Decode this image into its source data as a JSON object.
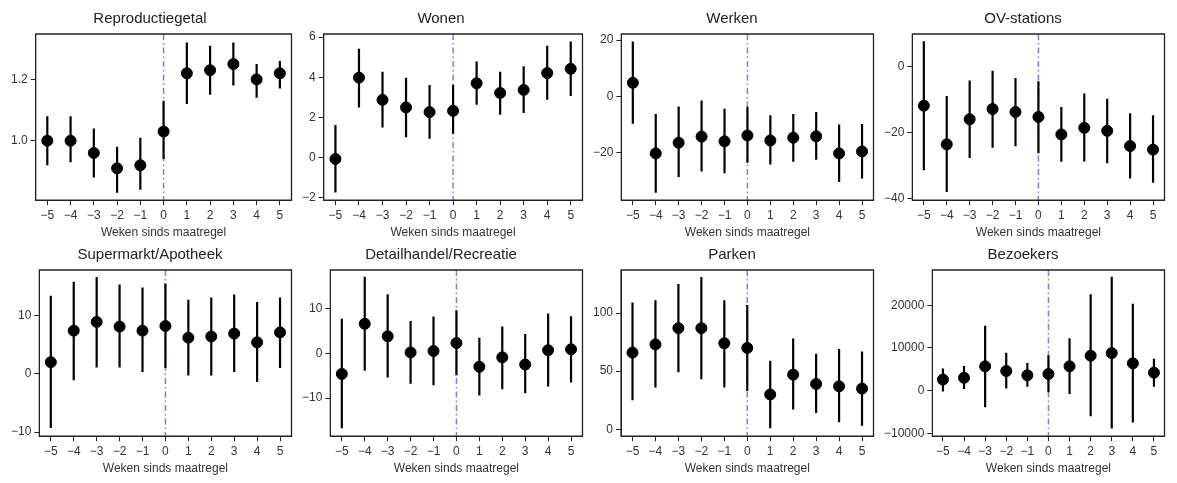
{
  "chart_data": [
    {
      "type": "scatter",
      "title": "Reproductiegetal",
      "xlabel": "Weken sinds maatregel",
      "x": [
        -5,
        -4,
        -3,
        -2,
        -1,
        0,
        1,
        2,
        3,
        4,
        5
      ],
      "series": [
        {
          "color": "#000000",
          "values": [
            1.0,
            1.0,
            0.96,
            0.91,
            0.92,
            1.03,
            1.22,
            1.23,
            1.25,
            1.2,
            1.22
          ],
          "errors": [
            [
              0.92,
              1.08
            ],
            [
              0.93,
              1.08
            ],
            [
              0.88,
              1.04
            ],
            [
              0.83,
              0.98
            ],
            [
              0.84,
              1.01
            ],
            [
              0.94,
              1.13
            ],
            [
              1.12,
              1.32
            ],
            [
              1.15,
              1.31
            ],
            [
              1.18,
              1.32
            ],
            [
              1.14,
              1.25
            ],
            [
              1.17,
              1.26
            ]
          ]
        }
      ],
      "xlim": [
        -5.5,
        5.5
      ],
      "xticks": [
        -5,
        -4,
        -3,
        -2,
        -1,
        0,
        1,
        2,
        3,
        4,
        5
      ],
      "ylim": [
        0.806,
        1.348
      ],
      "yticks": [
        {
          "value": 1,
          "label": "1.0"
        },
        1.2
      ],
      "marker": "circle",
      "grid": false,
      "legend": false,
      "ref_lines": [
        {
          "axis": "x",
          "value": 0,
          "color": "#7b7bff",
          "line_style": "dashdot"
        }
      ]
    },
    {
      "type": "scatter",
      "title": "Wonen",
      "xlabel": "Weken sinds maatregel",
      "x": [
        -5,
        -4,
        -3,
        -2,
        -1,
        0,
        1,
        2,
        3,
        4,
        5
      ],
      "series": [
        {
          "color": "#000000",
          "values": [
            -0.06,
            3.98,
            2.88,
            2.5,
            2.27,
            2.33,
            3.7,
            3.22,
            3.37,
            4.21,
            4.42
          ],
          "errors": [
            [
              -1.73,
              1.63
            ],
            [
              2.5,
              5.42
            ],
            [
              1.5,
              4.28
            ],
            [
              1.02,
              3.98
            ],
            [
              0.95,
              3.62
            ],
            [
              1.19,
              3.62
            ],
            [
              2.64,
              4.78
            ],
            [
              2.14,
              4.28
            ],
            [
              2.22,
              4.55
            ],
            [
              2.88,
              5.57
            ],
            [
              3.07,
              5.78
            ]
          ]
        }
      ],
      "xlim": [
        -5.5,
        5.5
      ],
      "xticks": [
        -5,
        -4,
        -3,
        -2,
        -1,
        0,
        1,
        2,
        3,
        4,
        5
      ],
      "ylim": [
        -2.11,
        6.15
      ],
      "yticks": [
        -2,
        0,
        2,
        4,
        6
      ],
      "marker": "circle",
      "grid": false,
      "legend": false,
      "ref_lines": [
        {
          "axis": "x",
          "value": 0,
          "color": "#7b7bff",
          "line_style": "dashdot"
        }
      ]
    },
    {
      "type": "scatter",
      "title": "Werken",
      "xlabel": "Weken sinds maatregel",
      "x": [
        -5,
        -4,
        -3,
        -2,
        -1,
        0,
        1,
        2,
        3,
        4,
        5
      ],
      "series": [
        {
          "color": "#000000",
          "values": [
            4.8,
            -20.4,
            -16.6,
            -14.4,
            -16.1,
            -14.0,
            -15.8,
            -14.8,
            -14.3,
            -20.4,
            -19.7
          ],
          "errors": [
            [
              -9.8,
              19.5
            ],
            [
              -34.4,
              -6.3
            ],
            [
              -28.8,
              -3.7
            ],
            [
              -26.9,
              -1.5
            ],
            [
              -27.5,
              -4.5
            ],
            [
              -23.7,
              -3.8
            ],
            [
              -24.4,
              -6.8
            ],
            [
              -23.4,
              -6.3
            ],
            [
              -22.7,
              -5.6
            ],
            [
              -30.6,
              -10.1
            ],
            [
              -29.4,
              -9.9
            ]
          ]
        }
      ],
      "xlim": [
        -5.5,
        5.5
      ],
      "xticks": [
        -5,
        -4,
        -3,
        -2,
        -1,
        0,
        1,
        2,
        3,
        4,
        5
      ],
      "ylim": [
        -37.1,
        22.2
      ],
      "yticks": [
        -20,
        0,
        20
      ],
      "marker": "circle",
      "grid": false,
      "legend": false,
      "ref_lines": [
        {
          "axis": "x",
          "value": 0,
          "color": "#7b7bff",
          "line_style": "dashdot"
        }
      ]
    },
    {
      "type": "scatter",
      "title": "OV-stations",
      "xlabel": "Weken sinds maatregel",
      "x": [
        -5,
        -4,
        -3,
        -2,
        -1,
        0,
        1,
        2,
        3,
        4,
        5
      ],
      "series": [
        {
          "color": "#000000",
          "values": [
            -11.9,
            -23.6,
            -16.0,
            -12.9,
            -13.8,
            -15.3,
            -20.6,
            -18.6,
            -19.5,
            -24.1,
            -25.2
          ],
          "errors": [
            [
              -31.4,
              7.6
            ],
            [
              -38.0,
              -9.0
            ],
            [
              -27.7,
              -4.3
            ],
            [
              -24.6,
              -1.3
            ],
            [
              -24.2,
              -3.5
            ],
            [
              -26.3,
              -4.5
            ],
            [
              -28.9,
              -12.3
            ],
            [
              -28.8,
              -8.2
            ],
            [
              -29.3,
              -9.8
            ],
            [
              -33.9,
              -14.2
            ],
            [
              -35.2,
              -14.8
            ]
          ]
        }
      ],
      "xlim": [
        -5.5,
        5.5
      ],
      "xticks": [
        -5,
        -4,
        -3,
        -2,
        -1,
        0,
        1,
        2,
        3,
        4,
        5
      ],
      "ylim": [
        -40.5,
        9.8
      ],
      "yticks": [
        -40,
        -20,
        0
      ],
      "marker": "circle",
      "grid": false,
      "legend": false,
      "ref_lines": [
        {
          "axis": "x",
          "value": 0,
          "color": "#7b7bff",
          "line_style": "dashdot"
        }
      ]
    },
    {
      "type": "scatter",
      "title": "Supermarkt/Apotheek",
      "xlabel": "Weken sinds maatregel",
      "x": [
        -5,
        -4,
        -3,
        -2,
        -1,
        0,
        1,
        2,
        3,
        4,
        5
      ],
      "series": [
        {
          "color": "#000000",
          "values": [
            2.0,
            7.4,
            8.9,
            8.1,
            7.4,
            8.2,
            6.2,
            6.4,
            6.9,
            5.4,
            7.1
          ],
          "errors": [
            [
              -9.3,
              13.4
            ],
            [
              -1.1,
              15.8
            ],
            [
              1.1,
              16.6
            ],
            [
              1.1,
              15.3
            ],
            [
              0.3,
              14.8
            ],
            [
              1.0,
              15.5
            ],
            [
              -0.3,
              12.7
            ],
            [
              -0.3,
              13.1
            ],
            [
              0.3,
              13.6
            ],
            [
              -1.4,
              12.3
            ],
            [
              1.0,
              13.1
            ]
          ]
        }
      ],
      "xlim": [
        -5.5,
        5.5
      ],
      "xticks": [
        -5,
        -4,
        -3,
        -2,
        -1,
        0,
        1,
        2,
        3,
        4,
        5
      ],
      "ylim": [
        -10.7,
        17.8
      ],
      "yticks": [
        -10,
        0,
        10
      ],
      "marker": "circle",
      "grid": false,
      "legend": false,
      "ref_lines": [
        {
          "axis": "x",
          "value": 0,
          "color": "#7b7bff",
          "line_style": "dashdot"
        }
      ]
    },
    {
      "type": "scatter",
      "title": "Detailhandel/Recreatie",
      "xlabel": "Weken sinds maatregel",
      "x": [
        -5,
        -4,
        -3,
        -2,
        -1,
        0,
        1,
        2,
        3,
        4,
        5
      ],
      "series": [
        {
          "color": "#000000",
          "values": [
            -4.6,
            6.6,
            3.8,
            0.2,
            0.5,
            2.3,
            -3.0,
            -0.9,
            -2.5,
            0.7,
            0.9
          ],
          "errors": [
            [
              -16.7,
              7.7
            ],
            [
              -3.9,
              17.1
            ],
            [
              -5.4,
              13.2
            ],
            [
              -6.8,
              7.2
            ],
            [
              -7.1,
              8.2
            ],
            [
              -4.9,
              9.6
            ],
            [
              -9.4,
              3.5
            ],
            [
              -8.0,
              6.0
            ],
            [
              -8.9,
              4.3
            ],
            [
              -7.4,
              8.9
            ],
            [
              -6.5,
              8.3
            ]
          ]
        }
      ],
      "xlim": [
        -5.5,
        5.5
      ],
      "xticks": [
        -5,
        -4,
        -3,
        -2,
        -1,
        0,
        1,
        2,
        3,
        4,
        5
      ],
      "ylim": [
        -18.5,
        18.6
      ],
      "yticks": [
        -10,
        0,
        10
      ],
      "marker": "circle",
      "grid": false,
      "legend": false,
      "ref_lines": [
        {
          "axis": "x",
          "value": 0,
          "color": "#7b7bff",
          "line_style": "dashdot"
        }
      ]
    },
    {
      "type": "scatter",
      "title": "Parken",
      "xlabel": "Weken sinds maatregel",
      "x": [
        -5,
        -4,
        -3,
        -2,
        -1,
        0,
        1,
        2,
        3,
        4,
        5
      ],
      "series": [
        {
          "color": "#000000",
          "values": [
            66,
            73,
            87,
            87,
            74,
            70,
            30,
            47,
            39,
            37,
            35
          ],
          "errors": [
            [
              25,
              109
            ],
            [
              36,
              111
            ],
            [
              49,
              125
            ],
            [
              43,
              131
            ],
            [
              36,
              111
            ],
            [
              33,
              107
            ],
            [
              1,
              59
            ],
            [
              17,
              78
            ],
            [
              14,
              65
            ],
            [
              6,
              69
            ],
            [
              3,
              67
            ]
          ]
        }
      ],
      "xlim": [
        -5.5,
        5.5
      ],
      "xticks": [
        -5,
        -4,
        -3,
        -2,
        -1,
        0,
        1,
        2,
        3,
        4,
        5
      ],
      "ylim": [
        -5.9,
        137
      ],
      "yticks": [
        0,
        50,
        100
      ],
      "marker": "circle",
      "grid": false,
      "legend": false,
      "ref_lines": [
        {
          "axis": "x",
          "value": 0,
          "color": "#7b7bff",
          "line_style": "dashdot"
        }
      ]
    },
    {
      "type": "scatter",
      "title": "Bezoekers",
      "xlabel": "Weken sinds maatregel",
      "x": [
        -5,
        -4,
        -3,
        -2,
        -1,
        0,
        1,
        2,
        3,
        4,
        5
      ],
      "series": [
        {
          "color": "#000000",
          "values": [
            2600,
            3000,
            5700,
            4600,
            3600,
            3900,
            5700,
            8200,
            8800,
            6400,
            4200
          ],
          "errors": [
            [
              -200,
              5200
            ],
            [
              400,
              5800
            ],
            [
              -3900,
              15200
            ],
            [
              500,
              8900
            ],
            [
              900,
              6500
            ],
            [
              -400,
              8300
            ],
            [
              -800,
              12300
            ],
            [
              -6000,
              22600
            ],
            [
              -8900,
              26700
            ],
            [
              -7500,
              20400
            ],
            [
              900,
              7500
            ]
          ]
        }
      ],
      "xlim": [
        -5.5,
        5.5
      ],
      "xticks": [
        -5,
        -4,
        -3,
        -2,
        -1,
        0,
        1,
        2,
        3,
        4,
        5
      ],
      "ylim": [
        -10700,
        28300
      ],
      "yticks": [
        -10000,
        0,
        10000,
        20000
      ],
      "marker": "circle",
      "grid": false,
      "legend": false,
      "ref_lines": [
        {
          "axis": "x",
          "value": 0,
          "color": "#7b7bff",
          "line_style": "dashdot"
        }
      ]
    }
  ]
}
